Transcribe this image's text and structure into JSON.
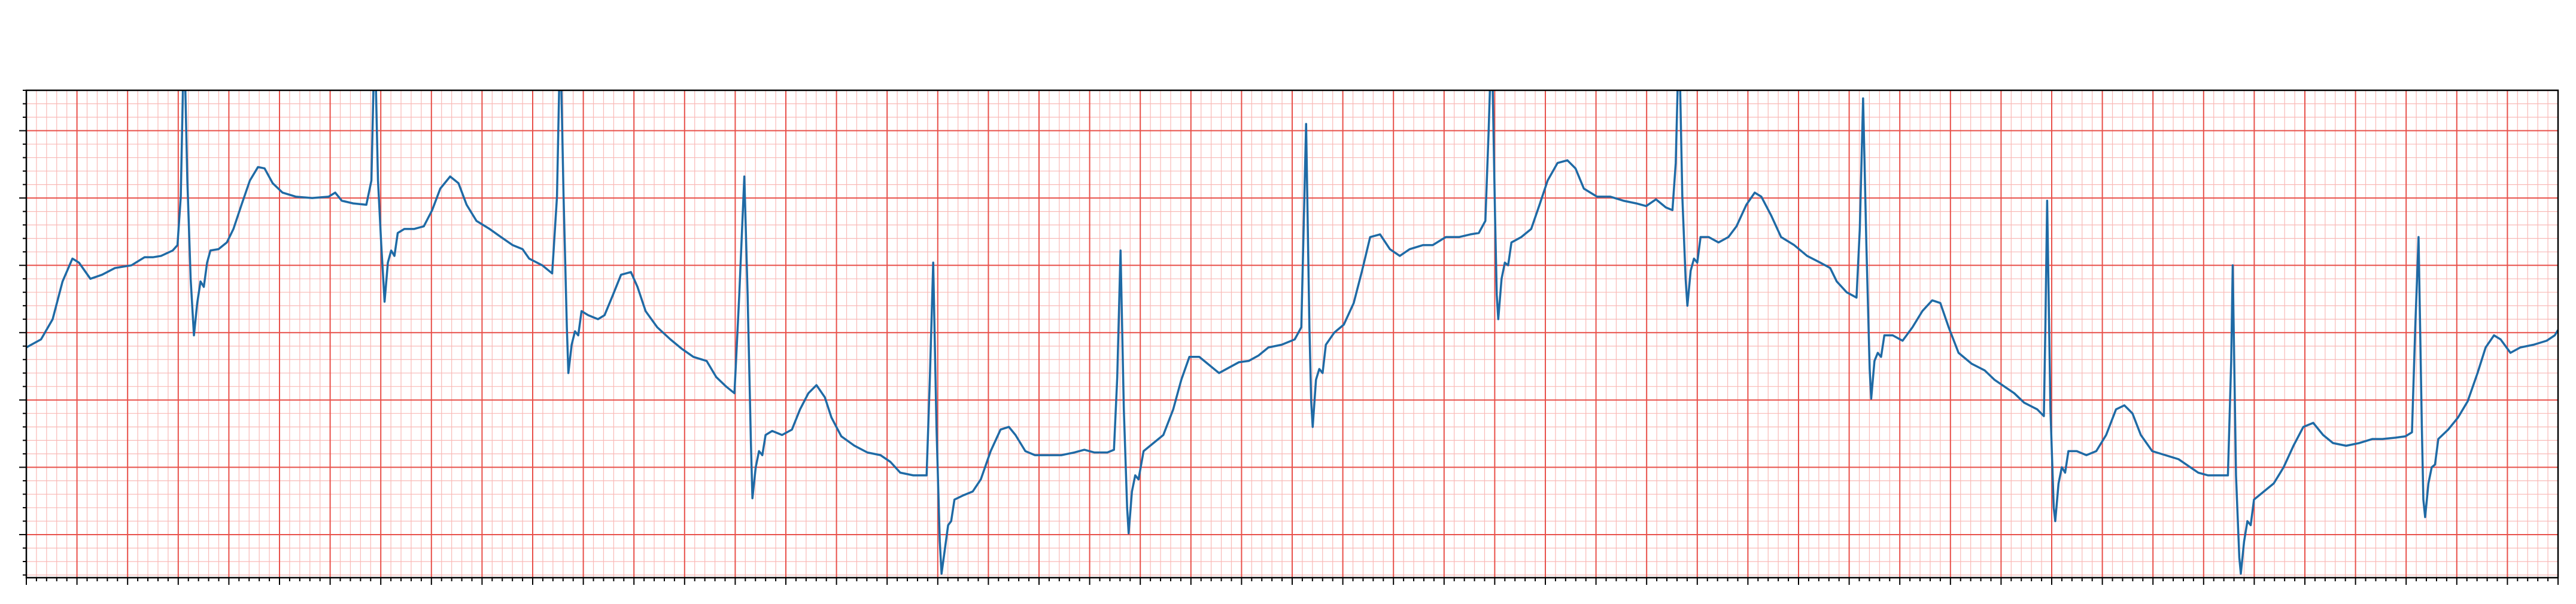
{
  "chart_data": {
    "type": "line",
    "xlim": [
      0,
      10
    ],
    "ylim": [
      -1.82,
      1.8
    ],
    "grid": {
      "major_x": 0.2,
      "minor_x": 0.04,
      "major_y": 0.5,
      "minor_y": 0.1,
      "major_color": "#e8504a",
      "minor_color": "#f9b9b6"
    },
    "x": [
      0,
      0.058,
      0.104,
      0.143,
      0.182,
      0.208,
      0.253,
      0.299,
      0.35,
      0.415,
      0.467,
      0.5,
      0.532,
      0.578,
      0.597,
      0.61,
      0.623,
      0.636,
      0.649,
      0.662,
      0.675,
      0.688,
      0.701,
      0.714,
      0.727,
      0.759,
      0.792,
      0.818,
      0.85,
      0.883,
      0.915,
      0.941,
      0.973,
      1.012,
      1.064,
      1.129,
      1.194,
      1.22,
      1.246,
      1.291,
      1.343,
      1.363,
      1.376,
      1.389,
      1.402,
      1.415,
      1.428,
      1.441,
      1.454,
      1.467,
      1.493,
      1.531,
      1.57,
      1.603,
      1.635,
      1.674,
      1.707,
      1.739,
      1.778,
      1.83,
      1.875,
      1.921,
      1.96,
      1.986,
      2.038,
      2.077,
      2.096,
      2.109,
      2.122,
      2.135,
      2.141,
      2.154,
      2.167,
      2.18,
      2.193,
      2.219,
      2.258,
      2.284,
      2.317,
      2.349,
      2.388,
      2.414,
      2.446,
      2.492,
      2.544,
      2.589,
      2.635,
      2.687,
      2.725,
      2.764,
      2.797,
      2.816,
      2.836,
      2.849,
      2.862,
      2.868,
      2.881,
      2.894,
      2.907,
      2.92,
      2.946,
      2.985,
      3.024,
      3.056,
      3.089,
      3.121,
      3.154,
      3.18,
      3.219,
      3.271,
      3.322,
      3.374,
      3.413,
      3.452,
      3.504,
      3.556,
      3.569,
      3.582,
      3.595,
      3.608,
      3.615,
      3.628,
      3.641,
      3.653,
      3.666,
      3.699,
      3.738,
      3.77,
      3.809,
      3.848,
      3.881,
      3.907,
      3.946,
      3.984,
      4.036,
      4.088,
      4.14,
      4.179,
      4.218,
      4.27,
      4.296,
      4.309,
      4.322,
      4.335,
      4.348,
      4.354,
      4.367,
      4.38,
      4.393,
      4.413,
      4.452,
      4.491,
      4.53,
      4.562,
      4.594,
      4.633,
      4.672,
      4.711,
      4.75,
      4.789,
      4.828,
      4.867,
      4.906,
      4.958,
      5.01,
      5.036,
      5.055,
      5.068,
      5.075,
      5.081,
      5.094,
      5.107,
      5.12,
      5.133,
      5.166,
      5.204,
      5.243,
      5.276,
      5.308,
      5.347,
      5.386,
      5.425,
      5.464,
      5.516,
      5.555,
      5.607,
      5.659,
      5.704,
      5.737,
      5.763,
      5.776,
      5.788,
      5.801,
      5.808,
      5.814,
      5.827,
      5.84,
      5.853,
      5.866,
      5.905,
      5.944,
      5.977,
      6.009,
      6.048,
      6.087,
      6.119,
      6.152,
      6.204,
      6.256,
      6.308,
      6.359,
      6.398,
      6.437,
      6.476,
      6.502,
      6.515,
      6.528,
      6.541,
      6.554,
      6.561,
      6.574,
      6.587,
      6.6,
      6.613,
      6.645,
      6.684,
      6.723,
      6.755,
      6.794,
      6.827,
      6.853,
      6.892,
      6.931,
      6.983,
      7.034,
      7.086,
      7.125,
      7.151,
      7.19,
      7.229,
      7.242,
      7.255,
      7.268,
      7.281,
      7.287,
      7.3,
      7.313,
      7.326,
      7.339,
      7.372,
      7.411,
      7.45,
      7.489,
      7.528,
      7.56,
      7.593,
      7.632,
      7.683,
      7.735,
      7.774,
      7.813,
      7.852,
      7.891,
      7.943,
      7.969,
      7.975,
      7.982,
      7.995,
      8.008,
      8.014,
      8.027,
      8.04,
      8.053,
      8.066,
      8.099,
      8.137,
      8.176,
      8.215,
      8.254,
      8.287,
      8.319,
      8.352,
      8.397,
      8.449,
      8.501,
      8.54,
      8.579,
      8.618,
      8.67,
      8.696,
      8.709,
      8.715,
      8.728,
      8.741,
      8.747,
      8.76,
      8.773,
      8.786,
      8.799,
      8.838,
      8.877,
      8.916,
      8.955,
      8.994,
      9.033,
      9.072,
      9.111,
      9.163,
      9.215,
      9.267,
      9.306,
      9.358,
      9.397,
      9.423,
      9.436,
      9.449,
      9.462,
      9.468,
      9.475,
      9.488,
      9.501,
      9.514,
      9.527,
      9.566,
      9.605,
      9.643,
      9.682,
      9.714,
      9.747,
      9.773,
      9.812,
      9.851,
      9.903,
      9.955,
      9.987,
      10.0
    ],
    "series": [
      {
        "color": "#1f6aa5",
        "values": [
          -0.11,
          -0.05,
          0.1,
          0.38,
          0.55,
          0.52,
          0.4,
          0.43,
          0.48,
          0.5,
          0.56,
          0.56,
          0.57,
          0.61,
          0.65,
          1.01,
          2.23,
          1.13,
          0.4,
          -0.02,
          0.22,
          0.38,
          0.34,
          0.52,
          0.61,
          0.62,
          0.67,
          0.77,
          0.95,
          1.13,
          1.23,
          1.22,
          1.11,
          1.04,
          1.01,
          1.0,
          1.01,
          1.04,
          0.98,
          0.96,
          0.95,
          1.13,
          2.23,
          1.13,
          0.65,
          0.23,
          0.52,
          0.61,
          0.57,
          0.74,
          0.77,
          0.77,
          0.79,
          0.91,
          1.07,
          1.16,
          1.11,
          0.95,
          0.83,
          0.77,
          0.71,
          0.65,
          0.62,
          0.55,
          0.5,
          0.44,
          1.01,
          2.23,
          1.01,
          0.04,
          -0.3,
          -0.09,
          0.01,
          -0.02,
          0.16,
          0.13,
          0.1,
          0.13,
          0.28,
          0.43,
          0.45,
          0.34,
          0.16,
          0.04,
          -0.05,
          -0.12,
          -0.18,
          -0.21,
          -0.33,
          -0.4,
          -0.45,
          0.28,
          1.16,
          0.28,
          -0.82,
          -1.23,
          -1.0,
          -0.88,
          -0.91,
          -0.76,
          -0.73,
          -0.76,
          -0.72,
          -0.57,
          -0.45,
          -0.39,
          -0.48,
          -0.63,
          -0.77,
          -0.84,
          -0.89,
          -0.91,
          -0.96,
          -1.04,
          -1.06,
          -1.06,
          -0.33,
          0.52,
          -0.7,
          -1.55,
          -1.79,
          -1.61,
          -1.43,
          -1.4,
          -1.24,
          -1.21,
          -1.18,
          -1.09,
          -0.88,
          -0.72,
          -0.7,
          -0.76,
          -0.88,
          -0.91,
          -0.91,
          -0.91,
          -0.89,
          -0.87,
          -0.89,
          -0.89,
          -0.87,
          -0.33,
          0.61,
          -0.57,
          -1.3,
          -1.49,
          -1.18,
          -1.06,
          -1.09,
          -0.88,
          -0.82,
          -0.76,
          -0.57,
          -0.35,
          -0.18,
          -0.18,
          -0.24,
          -0.3,
          -0.26,
          -0.22,
          -0.21,
          -0.17,
          -0.11,
          -0.09,
          -0.05,
          0.04,
          1.55,
          0.04,
          -0.51,
          -0.7,
          -0.35,
          -0.27,
          -0.3,
          -0.09,
          0.0,
          0.06,
          0.22,
          0.46,
          0.71,
          0.73,
          0.62,
          0.57,
          0.62,
          0.65,
          0.65,
          0.71,
          0.71,
          0.73,
          0.74,
          0.83,
          1.5,
          2.23,
          0.89,
          0.28,
          0.1,
          0.4,
          0.52,
          0.5,
          0.67,
          0.71,
          0.77,
          0.95,
          1.13,
          1.26,
          1.28,
          1.22,
          1.07,
          1.01,
          1.01,
          0.98,
          0.96,
          0.94,
          0.99,
          0.93,
          0.91,
          1.26,
          2.23,
          1.01,
          0.4,
          0.2,
          0.46,
          0.55,
          0.52,
          0.71,
          0.71,
          0.67,
          0.71,
          0.79,
          0.95,
          1.04,
          1.01,
          0.87,
          0.71,
          0.65,
          0.57,
          0.52,
          0.48,
          0.38,
          0.3,
          0.26,
          0.77,
          1.74,
          0.65,
          -0.27,
          -0.49,
          -0.21,
          -0.15,
          -0.18,
          -0.02,
          -0.02,
          -0.06,
          0.04,
          0.16,
          0.24,
          0.22,
          0.04,
          -0.15,
          -0.23,
          -0.28,
          -0.35,
          -0.4,
          -0.45,
          -0.52,
          -0.57,
          -0.62,
          0.04,
          0.98,
          -0.57,
          -1.3,
          -1.4,
          -1.12,
          -1.0,
          -1.04,
          -0.88,
          -0.88,
          -0.91,
          -0.88,
          -0.76,
          -0.57,
          -0.54,
          -0.6,
          -0.76,
          -0.88,
          -0.91,
          -0.94,
          -0.99,
          -1.04,
          -1.06,
          -1.06,
          -1.06,
          -0.21,
          0.5,
          -1.06,
          -1.67,
          -1.79,
          -1.55,
          -1.4,
          -1.43,
          -1.24,
          -1.18,
          -1.12,
          -1.0,
          -0.84,
          -0.7,
          -0.67,
          -0.76,
          -0.82,
          -0.84,
          -0.82,
          -0.79,
          -0.79,
          -0.78,
          -0.77,
          -0.74,
          0.04,
          0.71,
          -0.7,
          -1.24,
          -1.37,
          -1.12,
          -1.0,
          -0.98,
          -0.79,
          -0.72,
          -0.63,
          -0.51,
          -0.3,
          -0.11,
          -0.02,
          -0.05,
          -0.15,
          -0.11,
          -0.09,
          -0.06,
          -0.02,
          0.02
        ]
      }
    ]
  }
}
